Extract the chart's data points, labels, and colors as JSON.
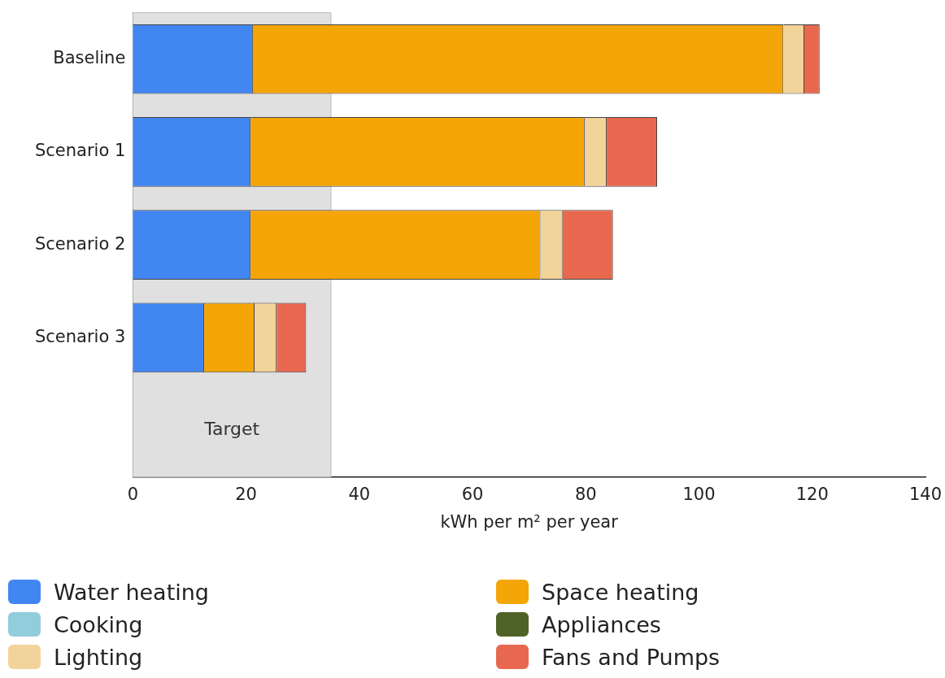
{
  "chart_data": {
    "type": "bar",
    "orientation": "horizontal",
    "stacked": true,
    "xlabel": "kWh per m² per year",
    "categories": [
      "Baseline",
      "Scenario 1",
      "Scenario 2",
      "Scenario 3"
    ],
    "series": [
      {
        "name": "Water heating",
        "color": "#4286f2",
        "values": [
          21.2,
          20.8,
          20.8,
          12.6
        ]
      },
      {
        "name": "Cooking",
        "color": "#92cddc",
        "values": [
          null,
          null,
          null,
          null
        ]
      },
      {
        "name": "Space heating",
        "color": "#f4a507",
        "values": [
          93.7,
          59,
          51.2,
          8.9
        ]
      },
      {
        "name": "Appliances",
        "color": "#4f6228",
        "values": [
          null,
          null,
          null,
          null
        ]
      },
      {
        "name": "Lighting",
        "color": "#f2d39a",
        "values": [
          3.7,
          3.9,
          3.9,
          3.9
        ]
      },
      {
        "name": "Fans and Pumps",
        "color": "#e8684f",
        "values": [
          2.7,
          8.9,
          8.9,
          5.2
        ]
      }
    ],
    "xlim": [
      0,
      140
    ],
    "xticks": [
      0,
      20,
      40,
      60,
      80,
      100,
      120,
      140
    ],
    "bands": [
      {
        "axis": "x",
        "from": 0,
        "to": 35,
        "label": "Target",
        "color": "#e0e0e0"
      }
    ],
    "grid": false,
    "legend": "bottom"
  }
}
